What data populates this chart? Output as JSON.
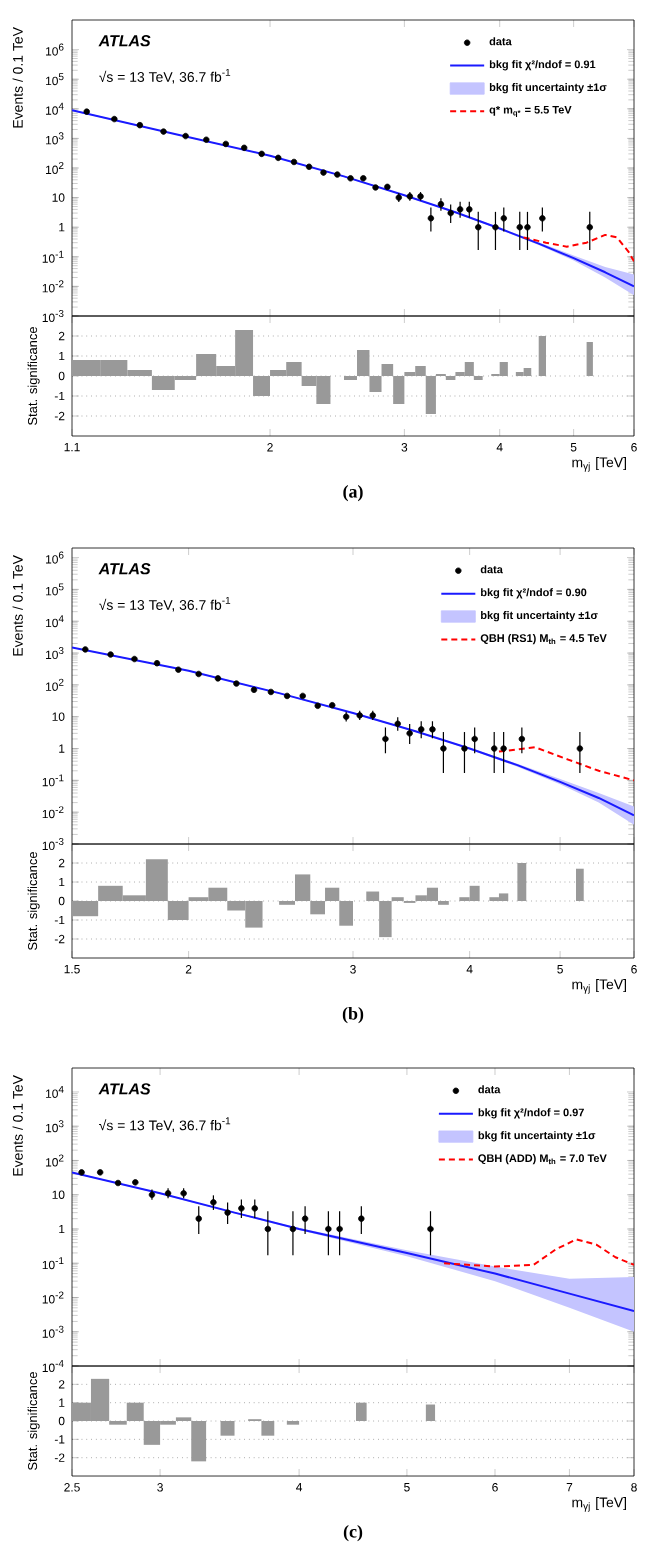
{
  "chart_data": [
    {
      "type": "scatter",
      "log": "xy",
      "xlim": [
        1.1,
        6
      ],
      "ylim": [
        0.001,
        10000000
      ],
      "xticks": [
        2,
        3,
        4,
        5,
        6
      ],
      "yticks": [
        {
          "value": 0.001,
          "label": "10$^{-3}$"
        },
        {
          "value": 0.01,
          "label": "10$^{-2}$"
        },
        {
          "value": 0.1,
          "label": "10$^{-1}$"
        },
        1,
        10,
        {
          "value": 100,
          "label": "10$^{2}$"
        },
        {
          "value": 1000,
          "label": "10$^{3}$"
        },
        {
          "value": 10000,
          "label": "10$^{4}$"
        },
        {
          "value": 100000,
          "label": "10$^{5}$"
        },
        {
          "value": 1000000,
          "label": "10$^{6}$"
        }
      ],
      "tick_labels": "y",
      "legend": "top right",
      "ylabel": "Events / 0.1 TeV",
      "annotations": [
        "ATLAS",
        "√s = 13 TeV, 36.7 fb$^{-1}$"
      ],
      "series": [
        {
          "name": "data",
          "type": "scatter",
          "marker": "circle",
          "color": "#000000",
          "x": [
            1.15,
            1.25,
            1.35,
            1.45,
            1.55,
            1.65,
            1.75,
            1.85,
            1.95,
            2.05,
            2.15,
            2.25,
            2.35,
            2.45,
            2.55,
            2.65,
            2.75,
            2.85,
            2.95,
            3.05,
            3.15,
            3.25,
            3.35,
            3.45,
            3.55,
            3.65,
            3.75,
            3.95,
            4.05,
            4.25,
            4.35,
            4.55,
            5.25
          ],
          "values": [
            8000,
            4500,
            2800,
            1700,
            1200,
            900,
            650,
            480,
            300,
            220,
            160,
            110,
            70,
            60,
            45,
            45,
            22,
            23,
            10,
            11,
            11,
            2,
            6,
            3,
            4,
            4,
            1,
            1,
            2,
            1,
            1,
            2,
            1
          ],
          "errors": [
            null,
            null,
            null,
            null,
            null,
            null,
            null,
            null,
            null,
            null,
            null,
            null,
            null,
            null,
            null,
            null,
            null,
            null,
            [
              7.1,
              14.3
            ],
            [
              7.9,
              15.4
            ],
            [
              7.9,
              15.4
            ],
            [
              0.71,
              4.6
            ],
            [
              3.6,
              9.6
            ],
            [
              1.4,
              5.9
            ],
            [
              2.1,
              7.2
            ],
            [
              2.1,
              7.2
            ],
            [
              0.17,
              3.3
            ],
            [
              0.17,
              3.3
            ],
            [
              0.71,
              4.6
            ],
            [
              0.17,
              3.3
            ],
            [
              0.17,
              3.3
            ],
            [
              0.71,
              4.6
            ],
            [
              0.17,
              3.3
            ]
          ]
        },
        {
          "name": "bkg fit χ²/ndof = 0.91",
          "type": "line",
          "line_style": "solid",
          "color": "#1a1aff",
          "x": [
            1.1,
            1.5,
            2,
            2.5,
            3,
            3.5,
            4,
            4.5,
            5,
            5.5,
            6
          ],
          "values": [
            9000,
            1400,
            260,
            52,
            12,
            3.2,
            0.9,
            0.28,
            0.09,
            0.03,
            0.01
          ]
        },
        {
          "name": "bkg fit uncertainty ±1σ",
          "type": "area",
          "color": "#c4c4ff",
          "x": [
            1.1,
            1.5,
            2,
            2.5,
            3,
            3.5,
            4,
            4.5,
            5,
            5.5,
            6
          ],
          "values": [
            null,
            null,
            null,
            null,
            null,
            null,
            null,
            null,
            null,
            null,
            null
          ],
          "lower": [
            8500,
            1350,
            250,
            50,
            11.5,
            3.0,
            0.83,
            0.25,
            0.075,
            0.02,
            0.005
          ],
          "upper": [
            9500,
            1450,
            270,
            54,
            12.5,
            3.4,
            0.97,
            0.31,
            0.11,
            0.045,
            0.025
          ]
        },
        {
          "name": "q* m$_{q*}$ = 5.5 TeV",
          "type": "line",
          "line_style": "dashed",
          "color": "#ff0000",
          "x": [
            4.3,
            4.6,
            4.9,
            5.2,
            5.5,
            5.7,
            5.9,
            6
          ],
          "values": [
            0.45,
            0.3,
            0.22,
            0.3,
            0.55,
            0.45,
            0.15,
            0.07
          ]
        }
      ]
    },
    {
      "type": "histogram",
      "log": "x",
      "grid": "y",
      "color": "#999999",
      "xlim": [
        1.1,
        6
      ],
      "ylim": [
        -3,
        3
      ],
      "xticks": [
        1.1,
        2,
        3,
        4,
        5,
        6
      ],
      "yticks": [
        -2,
        -1,
        0,
        1,
        2
      ],
      "xlabel": "m$_{γj}$ [TeV]",
      "ylabel": "Stat. significance",
      "annotations": [
        "(a)"
      ],
      "bins": [
        1.1,
        1.2,
        1.3,
        1.4,
        1.5,
        1.6,
        1.7,
        1.8,
        1.9,
        2.0,
        2.1,
        2.2,
        2.3,
        2.4,
        2.5,
        2.6,
        2.7,
        2.8,
        2.9,
        3.0,
        3.1,
        3.2,
        3.3,
        3.4,
        3.5,
        3.6,
        3.7,
        3.8,
        3.9,
        4.0,
        4.1,
        4.2,
        4.3,
        4.4,
        4.5,
        4.6,
        5.2,
        5.3
      ],
      "values": [
        0.8,
        0.8,
        0.3,
        -0.7,
        -0.2,
        1.1,
        0.5,
        2.3,
        -1.0,
        0.3,
        0.7,
        -0.5,
        -1.4,
        0,
        -0.2,
        1.3,
        -0.8,
        0.6,
        -1.4,
        0.2,
        0.5,
        -1.9,
        0.1,
        -0.2,
        0.2,
        0.7,
        -0.2,
        0,
        0.1,
        0.7,
        0,
        0.2,
        0.4,
        0,
        2.0,
        0,
        1.7
      ]
    },
    {
      "type": "scatter",
      "log": "xy",
      "xlim": [
        1.5,
        6
      ],
      "ylim": [
        0.001,
        2000000
      ],
      "xticks": [
        2,
        3,
        4,
        5,
        6
      ],
      "yticks": [
        {
          "value": 0.001,
          "label": "10$^{-3}$"
        },
        {
          "value": 0.01,
          "label": "10$^{-2}$"
        },
        {
          "value": 0.1,
          "label": "10$^{-1}$"
        },
        1,
        10,
        {
          "value": 100,
          "label": "10$^{2}$"
        },
        {
          "value": 1000,
          "label": "10$^{3}$"
        },
        {
          "value": 10000,
          "label": "10$^{4}$"
        },
        {
          "value": 100000,
          "label": "10$^{5}$"
        },
        {
          "value": 1000000,
          "label": "10$^{6}$"
        }
      ],
      "tick_labels": "y",
      "legend": "top right",
      "ylabel": "Events / 0.1 TeV",
      "annotations": [
        "ATLAS",
        "√s = 13 TeV, 36.7 fb$^{-1}$"
      ],
      "series": [
        {
          "name": "data",
          "type": "scatter",
          "marker": "circle",
          "color": "#000000",
          "x": [
            1.55,
            1.65,
            1.75,
            1.85,
            1.95,
            2.05,
            2.15,
            2.25,
            2.35,
            2.45,
            2.55,
            2.65,
            2.75,
            2.85,
            2.95,
            3.05,
            3.15,
            3.25,
            3.35,
            3.45,
            3.55,
            3.65,
            3.75,
            3.95,
            4.05,
            4.25,
            4.35,
            4.55,
            5.25
          ],
          "values": [
            1300,
            900,
            650,
            480,
            300,
            220,
            160,
            110,
            70,
            60,
            45,
            45,
            22,
            23,
            10,
            11,
            11,
            2,
            6,
            3,
            4,
            4,
            1,
            1,
            2,
            1,
            1,
            2,
            1
          ],
          "errors": [
            null,
            null,
            null,
            null,
            null,
            null,
            null,
            null,
            null,
            null,
            null,
            null,
            null,
            null,
            [
              7.1,
              14.3
            ],
            [
              7.9,
              15.4
            ],
            [
              7.9,
              15.4
            ],
            [
              0.71,
              4.6
            ],
            [
              3.6,
              9.6
            ],
            [
              1.4,
              5.9
            ],
            [
              2.1,
              7.2
            ],
            [
              2.1,
              7.2
            ],
            [
              0.17,
              3.3
            ],
            [
              0.17,
              3.3
            ],
            [
              0.71,
              4.6
            ],
            [
              0.17,
              3.3
            ],
            [
              0.17,
              3.3
            ],
            [
              0.71,
              4.6
            ],
            [
              0.17,
              3.3
            ]
          ]
        },
        {
          "name": "bkg fit χ²/ndof = 0.90",
          "type": "line",
          "line_style": "solid",
          "color": "#1a1aff",
          "x": [
            1.5,
            2,
            2.5,
            3,
            3.5,
            4,
            4.5,
            5,
            5.5,
            6
          ],
          "values": [
            1500,
            280,
            55,
            13,
            3.5,
            1,
            0.3,
            0.09,
            0.028,
            0.008
          ]
        },
        {
          "name": "bkg fit uncertainty ±1σ",
          "type": "area",
          "color": "#c4c4ff",
          "x": [
            1.5,
            2,
            2.5,
            3,
            3.5,
            4,
            4.5,
            5,
            5.5,
            6
          ],
          "values": [
            null,
            null,
            null,
            null,
            null,
            null,
            null,
            null,
            null,
            null
          ],
          "lower": [
            1450,
            270,
            53,
            12.5,
            3.3,
            0.94,
            0.27,
            0.075,
            0.02,
            0.004
          ],
          "upper": [
            1550,
            290,
            57,
            13.5,
            3.7,
            1.06,
            0.33,
            0.11,
            0.04,
            0.015
          ]
        },
        {
          "name": "QBH (RS1) M$_{th}$ = 4.5 TeV",
          "type": "line",
          "line_style": "dashed",
          "color": "#ff0000",
          "x": [
            4.3,
            4.7,
            5.1,
            5.5,
            6
          ],
          "values": [
            0.8,
            1.1,
            0.45,
            0.2,
            0.1
          ]
        }
      ]
    },
    {
      "type": "histogram",
      "log": "x",
      "grid": "y",
      "color": "#999999",
      "xlim": [
        1.5,
        6
      ],
      "ylim": [
        -3,
        3
      ],
      "xticks": [
        1.5,
        2,
        3,
        4,
        5,
        6
      ],
      "yticks": [
        -2,
        -1,
        0,
        1,
        2
      ],
      "xlabel": "m$_{γj}$ [TeV]",
      "ylabel": "Stat. significance",
      "annotations": [
        "(b)"
      ],
      "bins": [
        1.5,
        1.6,
        1.7,
        1.8,
        1.9,
        2.0,
        2.1,
        2.2,
        2.3,
        2.4,
        2.5,
        2.6,
        2.7,
        2.8,
        2.9,
        3.0,
        3.1,
        3.2,
        3.3,
        3.4,
        3.5,
        3.6,
        3.7,
        3.8,
        3.9,
        4.0,
        4.1,
        4.2,
        4.3,
        4.4,
        4.5,
        4.6,
        5.2,
        5.3
      ],
      "values": [
        -0.8,
        0.8,
        0.3,
        2.2,
        -1.0,
        0.2,
        0.7,
        -0.5,
        -1.4,
        0,
        -0.2,
        1.4,
        -0.7,
        0.7,
        -1.3,
        0,
        0.5,
        -1.9,
        0.2,
        -0.1,
        0.3,
        0.7,
        -0.2,
        0,
        0.2,
        0.8,
        0,
        0.2,
        0.4,
        0,
        2.0,
        0,
        1.7
      ]
    },
    {
      "type": "scatter",
      "log": "xy",
      "xlim": [
        2.5,
        8
      ],
      "ylim": [
        0.0001,
        50000
      ],
      "xticks": [
        3,
        4,
        5,
        6,
        7,
        8
      ],
      "yticks": [
        {
          "value": 0.0001,
          "label": "10$^{-4}$"
        },
        {
          "value": 0.001,
          "label": "10$^{-3}$"
        },
        {
          "value": 0.01,
          "label": "10$^{-2}$"
        },
        {
          "value": 0.1,
          "label": "10$^{-1}$"
        },
        1,
        10,
        {
          "value": 100,
          "label": "10$^{2}$"
        },
        {
          "value": 1000,
          "label": "10$^{3}$"
        },
        {
          "value": 10000,
          "label": "10$^{4}$"
        }
      ],
      "tick_labels": "y",
      "legend": "top right",
      "ylabel": "Events / 0.1 TeV",
      "annotations": [
        "ATLAS",
        "√s = 13 TeV, 36.7 fb$^{-1}$"
      ],
      "series": [
        {
          "name": "data",
          "type": "scatter",
          "marker": "circle",
          "color": "#000000",
          "x": [
            2.55,
            2.65,
            2.75,
            2.85,
            2.95,
            3.05,
            3.15,
            3.25,
            3.35,
            3.45,
            3.55,
            3.65,
            3.75,
            3.95,
            4.05,
            4.25,
            4.35,
            4.55,
            5.25
          ],
          "values": [
            45,
            45,
            22,
            23,
            10,
            11,
            11,
            2,
            6,
            3,
            4,
            4,
            1,
            1,
            2,
            1,
            1,
            2,
            1
          ],
          "errors": [
            null,
            null,
            null,
            null,
            [
              7.1,
              14.3
            ],
            [
              7.9,
              15.4
            ],
            [
              7.9,
              15.4
            ],
            [
              0.71,
              4.6
            ],
            [
              3.6,
              9.6
            ],
            [
              1.4,
              5.9
            ],
            [
              2.1,
              7.2
            ],
            [
              2.1,
              7.2
            ],
            [
              0.17,
              3.3
            ],
            [
              0.17,
              3.3
            ],
            [
              0.71,
              4.6
            ],
            [
              0.17,
              3.3
            ],
            [
              0.17,
              3.3
            ],
            [
              0.71,
              4.6
            ],
            [
              0.17,
              3.3
            ]
          ]
        },
        {
          "name": "bkg fit χ²/ndof = 0.97",
          "type": "line",
          "line_style": "solid",
          "color": "#1a1aff",
          "x": [
            2.5,
            3,
            3.5,
            4,
            5,
            6,
            7,
            8
          ],
          "values": [
            45,
            11,
            3,
            1,
            0.2,
            0.05,
            0.013,
            0.004
          ]
        },
        {
          "name": "bkg fit uncertainty ±1σ",
          "type": "area",
          "color": "#c4c4ff",
          "x": [
            2.5,
            3,
            3.5,
            4,
            5,
            6,
            7,
            8
          ],
          "values": [
            null,
            null,
            null,
            null,
            null,
            null,
            null,
            null
          ],
          "lower": [
            43,
            10.5,
            2.85,
            0.93,
            0.16,
            0.03,
            0.005,
            0.001
          ],
          "upper": [
            47,
            11.5,
            3.15,
            1.07,
            0.24,
            0.08,
            0.035,
            0.04
          ]
        },
        {
          "name": "QBH (ADD) M$_{th}$ = 7.0 TeV",
          "type": "line",
          "line_style": "dashed",
          "color": "#ff0000",
          "x": [
            5.4,
            6,
            6.5,
            6.8,
            7.1,
            7.4,
            7.7,
            8
          ],
          "values": [
            0.1,
            0.08,
            0.09,
            0.25,
            0.5,
            0.35,
            0.15,
            0.09
          ]
        }
      ]
    },
    {
      "type": "histogram",
      "log": "x",
      "grid": "y",
      "color": "#999999",
      "xlim": [
        2.5,
        8
      ],
      "ylim": [
        -3,
        3
      ],
      "xticks": [
        2.5,
        3,
        4,
        5,
        6,
        7,
        8
      ],
      "yticks": [
        -2,
        -1,
        0,
        1,
        2
      ],
      "xlabel": "m$_{γj}$ [TeV]",
      "ylabel": "Stat. significance",
      "annotations": [
        "(c)"
      ],
      "bins": [
        2.5,
        2.6,
        2.7,
        2.8,
        2.9,
        3.0,
        3.1,
        3.2,
        3.3,
        3.4,
        3.5,
        3.6,
        3.7,
        3.8,
        3.9,
        4.0,
        4.5,
        4.6,
        5.2,
        5.3
      ],
      "values": [
        1.0,
        2.3,
        -0.2,
        1.0,
        -1.3,
        -0.2,
        0.2,
        -2.2,
        0,
        -0.8,
        0,
        0.1,
        -0.8,
        0,
        -0.2,
        0,
        1.0,
        0,
        0.9
      ]
    }
  ]
}
